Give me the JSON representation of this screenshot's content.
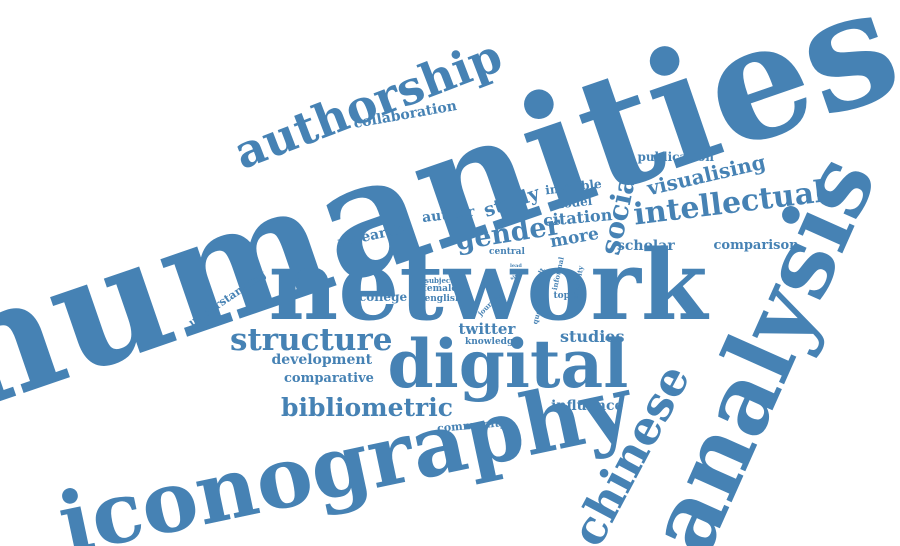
{
  "color": "#4682b4",
  "words": [
    {
      "text": "humanities"
    },
    {
      "text": "network"
    },
    {
      "text": "analysis"
    },
    {
      "text": "iconography"
    },
    {
      "text": "digital"
    },
    {
      "text": "authorship"
    },
    {
      "text": "chinese"
    },
    {
      "text": "intellectual"
    },
    {
      "text": "structure"
    },
    {
      "text": "social"
    },
    {
      "text": "bibliometric"
    },
    {
      "text": "gender"
    },
    {
      "text": "visualising"
    },
    {
      "text": "study"
    },
    {
      "text": "collaboration"
    },
    {
      "text": "publication"
    },
    {
      "text": "invisible"
    },
    {
      "text": "model"
    },
    {
      "text": "citation"
    },
    {
      "text": "author"
    },
    {
      "text": "more"
    },
    {
      "text": "research"
    },
    {
      "text": "scholar"
    },
    {
      "text": "comparison"
    },
    {
      "text": "central"
    },
    {
      "text": "understanding"
    },
    {
      "text": "college"
    },
    {
      "text": "subject"
    },
    {
      "text": "female"
    },
    {
      "text": "english"
    },
    {
      "text": "journal"
    },
    {
      "text": "result"
    },
    {
      "text": "question"
    },
    {
      "text": "informal"
    },
    {
      "text": "topic"
    },
    {
      "text": "diversity"
    },
    {
      "text": "twitter"
    },
    {
      "text": "knowledge"
    },
    {
      "text": "studies"
    },
    {
      "text": "development"
    },
    {
      "text": "comparative"
    },
    {
      "text": "influence"
    },
    {
      "text": "community"
    },
    {
      "text": "lead"
    },
    {
      "text": "single"
    }
  ]
}
